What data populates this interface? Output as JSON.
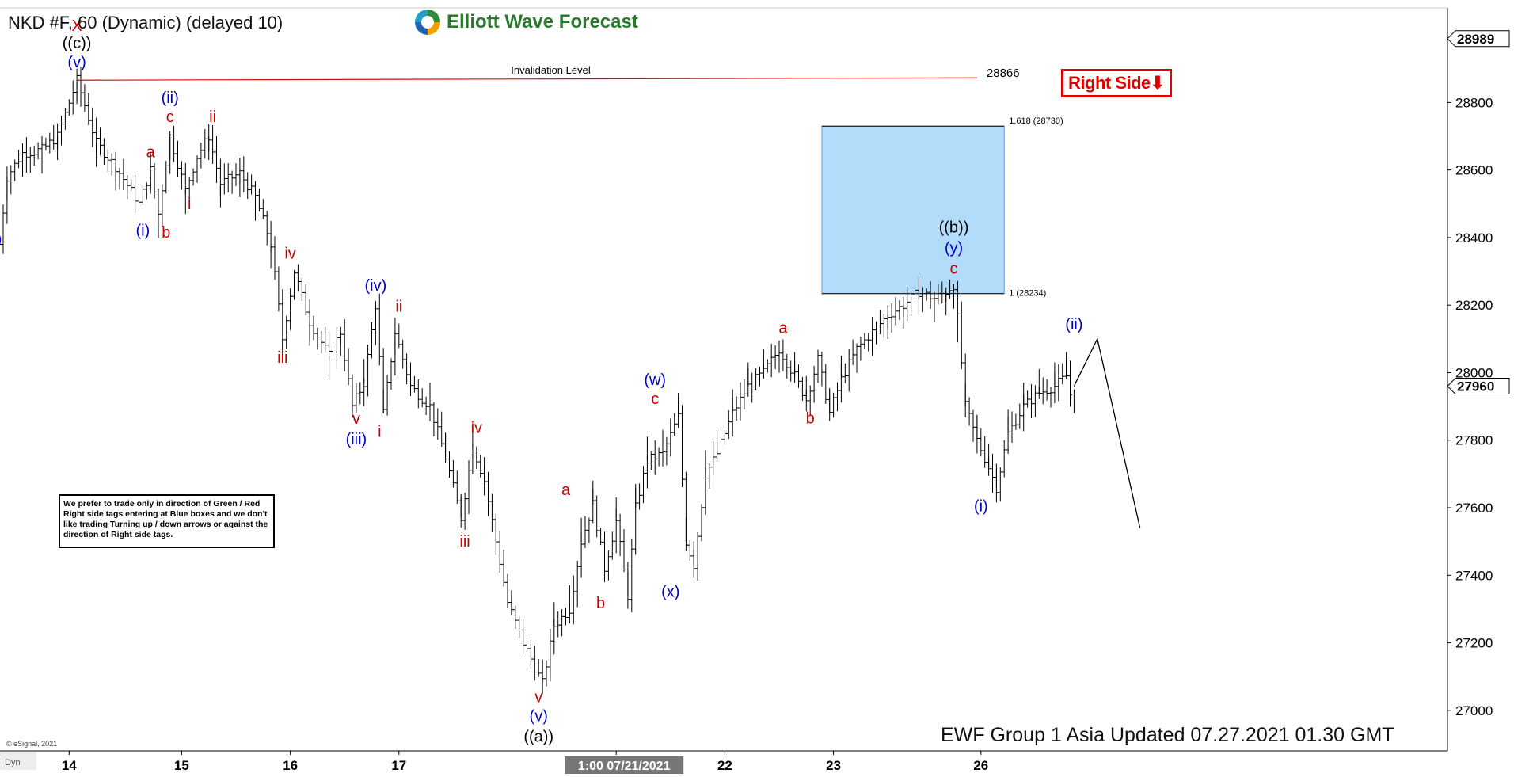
{
  "header": {
    "title": "NKD #F, 60 (Dynamic) (delayed 10)"
  },
  "logo": {
    "text": "Elliott Wave Forecast"
  },
  "right_side_tag": {
    "label": "Right Side",
    "arrow": "⬇",
    "color": "#e00000"
  },
  "note": {
    "text": "We prefer to trade only in direction of Green / Red Right side tags entering at Blue boxes and we don't like trading Turning up / down arrows or against the direction of Right side tags."
  },
  "footer": {
    "text": "EWF Group 1 Asia Updated 07.27.2021 01.30 GMT"
  },
  "copyright": {
    "text": "© eSignal, 2021"
  },
  "corner_label": {
    "text": "Dyn"
  },
  "chart_data": {
    "type": "bar",
    "subtype": "ohlc-hourly",
    "ylim": [
      26880,
      29080
    ],
    "yticks": [
      27000,
      27200,
      27400,
      27600,
      27800,
      28000,
      28200,
      28400,
      28600,
      28800
    ],
    "x_ticks": [
      {
        "label": "14",
        "i": 17
      },
      {
        "label": "15",
        "i": 46
      },
      {
        "label": "16",
        "i": 74
      },
      {
        "label": "17",
        "i": 102
      },
      {
        "label": "1:00 07/21/2021",
        "i": 158,
        "highlight": true
      },
      {
        "label": "22",
        "i": 186
      },
      {
        "label": "23",
        "i": 214
      },
      {
        "label": "26",
        "i": 252
      }
    ],
    "price_boxes": [
      {
        "value": 28989,
        "label": "28989"
      },
      {
        "value": 27960,
        "label": "27960"
      }
    ],
    "series_points": [
      {
        "i": -1,
        "p": 28380
      },
      {
        "i": 1,
        "p": 28580
      },
      {
        "i": 5,
        "p": 28650
      },
      {
        "i": 10,
        "p": 28660
      },
      {
        "i": 14,
        "p": 28700
      },
      {
        "i": 19,
        "p": 28866
      },
      {
        "i": 24,
        "p": 28680
      },
      {
        "i": 29,
        "p": 28610
      },
      {
        "i": 35,
        "p": 28500
      },
      {
        "i": 38,
        "p": 28600
      },
      {
        "i": 40,
        "p": 28470
      },
      {
        "i": 43,
        "p": 28700
      },
      {
        "i": 47,
        "p": 28540
      },
      {
        "i": 50,
        "p": 28640
      },
      {
        "i": 53,
        "p": 28700
      },
      {
        "i": 56,
        "p": 28560
      },
      {
        "i": 61,
        "p": 28590
      },
      {
        "i": 65,
        "p": 28520
      },
      {
        "i": 69,
        "p": 28380
      },
      {
        "i": 72,
        "p": 28100
      },
      {
        "i": 75,
        "p": 28300
      },
      {
        "i": 79,
        "p": 28150
      },
      {
        "i": 84,
        "p": 28050
      },
      {
        "i": 87,
        "p": 28120
      },
      {
        "i": 90,
        "p": 27900
      },
      {
        "i": 93,
        "p": 27970
      },
      {
        "i": 96,
        "p": 28200
      },
      {
        "i": 98,
        "p": 27880
      },
      {
        "i": 101,
        "p": 28120
      },
      {
        "i": 105,
        "p": 27960
      },
      {
        "i": 110,
        "p": 27900
      },
      {
        "i": 114,
        "p": 27750
      },
      {
        "i": 118,
        "p": 27570
      },
      {
        "i": 121,
        "p": 27780
      },
      {
        "i": 124,
        "p": 27680
      },
      {
        "i": 127,
        "p": 27500
      },
      {
        "i": 130,
        "p": 27320
      },
      {
        "i": 134,
        "p": 27200
      },
      {
        "i": 139,
        "p": 27080
      },
      {
        "i": 142,
        "p": 27250
      },
      {
        "i": 146,
        "p": 27300
      },
      {
        "i": 149,
        "p": 27500
      },
      {
        "i": 152,
        "p": 27610
      },
      {
        "i": 155,
        "p": 27420
      },
      {
        "i": 158,
        "p": 27560
      },
      {
        "i": 161,
        "p": 27340
      },
      {
        "i": 163,
        "p": 27600
      },
      {
        "i": 166,
        "p": 27740
      },
      {
        "i": 170,
        "p": 27760
      },
      {
        "i": 174,
        "p": 27870
      },
      {
        "i": 176,
        "p": 27500
      },
      {
        "i": 178,
        "p": 27430
      },
      {
        "i": 181,
        "p": 27700
      },
      {
        "i": 184,
        "p": 27760
      },
      {
        "i": 188,
        "p": 27880
      },
      {
        "i": 192,
        "p": 27960
      },
      {
        "i": 196,
        "p": 28000
      },
      {
        "i": 200,
        "p": 28070
      },
      {
        "i": 204,
        "p": 27990
      },
      {
        "i": 207,
        "p": 27920
      },
      {
        "i": 210,
        "p": 28040
      },
      {
        "i": 213,
        "p": 27880
      },
      {
        "i": 216,
        "p": 27980
      },
      {
        "i": 220,
        "p": 28070
      },
      {
        "i": 224,
        "p": 28120
      },
      {
        "i": 228,
        "p": 28170
      },
      {
        "i": 232,
        "p": 28200
      },
      {
        "i": 236,
        "p": 28240
      },
      {
        "i": 240,
        "p": 28220
      },
      {
        "i": 243,
        "p": 28240
      },
      {
        "i": 245,
        "p": 28260
      },
      {
        "i": 246,
        "p": 28160
      },
      {
        "i": 248,
        "p": 27900
      },
      {
        "i": 251,
        "p": 27800
      },
      {
        "i": 254,
        "p": 27720
      },
      {
        "i": 256,
        "p": 27660
      },
      {
        "i": 259,
        "p": 27820
      },
      {
        "i": 263,
        "p": 27900
      },
      {
        "i": 267,
        "p": 27940
      },
      {
        "i": 271,
        "p": 27960
      },
      {
        "i": 274,
        "p": 27990
      },
      {
        "i": 276,
        "p": 27880
      }
    ],
    "projection": [
      {
        "i": 276,
        "p": 27960
      },
      {
        "i": 282,
        "p": 28100
      },
      {
        "i": 293,
        "p": 27540
      }
    ],
    "invalidation": {
      "value": 28866,
      "label": "Invalidation Level",
      "price_label": "28866",
      "i_start": 19,
      "i_end": 251,
      "color": "#d01010"
    },
    "blue_box": {
      "low": 28234,
      "high": 28730,
      "i_start": 211,
      "i_end": 258,
      "low_label": "1 (28234)",
      "high_label": "1.618 (28730)",
      "color": "#b3dcfb"
    },
    "wave_labels": [
      {
        "text": "X",
        "i": 19,
        "p": 28866,
        "dy": -62,
        "color": "#e00000"
      },
      {
        "text": "((c))",
        "i": 19,
        "p": 28866,
        "dy": -40,
        "color": "#000000"
      },
      {
        "text": "(v)",
        "i": 19,
        "p": 28866,
        "dy": -16,
        "color": "#0000cc"
      },
      {
        "text": ")",
        "i": -1,
        "p": 28380,
        "dy": 0,
        "color": "#0000cc"
      },
      {
        "text": "(i)",
        "i": 36,
        "p": 28500,
        "dy": 40,
        "color": "#0000cc"
      },
      {
        "text": "a",
        "i": 38,
        "p": 28600,
        "dy": -16,
        "color": "#cc0000"
      },
      {
        "text": "b",
        "i": 42,
        "p": 28470,
        "dy": 30,
        "color": "#cc0000"
      },
      {
        "text": "c",
        "i": 43,
        "p": 28700,
        "dy": -18,
        "color": "#cc0000"
      },
      {
        "text": "(ii)",
        "i": 43,
        "p": 28700,
        "dy": -42,
        "color": "#0000cc"
      },
      {
        "text": "i",
        "i": 48,
        "p": 28540,
        "dy": 24,
        "color": "#cc0000"
      },
      {
        "text": "ii",
        "i": 54,
        "p": 28700,
        "dy": -18,
        "color": "#cc0000"
      },
      {
        "text": "iii",
        "i": 72,
        "p": 28100,
        "dy": 30,
        "color": "#cc0000"
      },
      {
        "text": "iv",
        "i": 74,
        "p": 28300,
        "dy": -16,
        "color": "#cc0000"
      },
      {
        "text": "v",
        "i": 91,
        "p": 27900,
        "dy": 22,
        "color": "#cc0000"
      },
      {
        "text": "(iii)",
        "i": 91,
        "p": 27900,
        "dy": 48,
        "color": "#0000cc"
      },
      {
        "text": "(iv)",
        "i": 96,
        "p": 28200,
        "dy": -18,
        "color": "#0000cc"
      },
      {
        "text": "i",
        "i": 97,
        "p": 27880,
        "dy": 30,
        "color": "#cc0000"
      },
      {
        "text": "ii",
        "i": 102,
        "p": 28120,
        "dy": -26,
        "color": "#cc0000"
      },
      {
        "text": "iii",
        "i": 119,
        "p": 27570,
        "dy": 36,
        "color": "#cc0000"
      },
      {
        "text": "iv",
        "i": 122,
        "p": 27780,
        "dy": -18,
        "color": "#cc0000"
      },
      {
        "text": "v",
        "i": 138,
        "p": 27080,
        "dy": 24,
        "color": "#cc0000"
      },
      {
        "text": "(v)",
        "i": 138,
        "p": 27080,
        "dy": 48,
        "color": "#0000cc"
      },
      {
        "text": "((a))",
        "i": 138,
        "p": 27080,
        "dy": 74,
        "color": "#000000"
      },
      {
        "text": "a",
        "i": 145,
        "p": 27610,
        "dy": -12,
        "color": "#cc0000"
      },
      {
        "text": "b",
        "i": 154,
        "p": 27420,
        "dy": 50,
        "color": "#cc0000"
      },
      {
        "text": "c",
        "i": 168,
        "p": 27870,
        "dy": -16,
        "color": "#cc0000"
      },
      {
        "text": "(w)",
        "i": 168,
        "p": 27870,
        "dy": -40,
        "color": "#0000cc"
      },
      {
        "text": "(x)",
        "i": 172,
        "p": 27430,
        "dy": 40,
        "color": "#0000cc"
      },
      {
        "text": "a",
        "i": 201,
        "p": 28070,
        "dy": -20,
        "color": "#cc0000"
      },
      {
        "text": "b",
        "i": 208,
        "p": 27920,
        "dy": 30,
        "color": "#cc0000"
      },
      {
        "text": "c",
        "i": 245,
        "p": 28260,
        "dy": -14,
        "color": "#cc0000"
      },
      {
        "text": "(y)",
        "i": 245,
        "p": 28260,
        "dy": -40,
        "color": "#0000cc"
      },
      {
        "text": "((b))",
        "i": 245,
        "p": 28260,
        "dy": -66,
        "color": "#000000"
      },
      {
        "text": "(i)",
        "i": 252,
        "p": 27660,
        "dy": 30,
        "color": "#0000cc"
      },
      {
        "text": "(ii)",
        "i": 276,
        "p": 28100,
        "dy": -12,
        "color": "#0000cc"
      }
    ]
  }
}
